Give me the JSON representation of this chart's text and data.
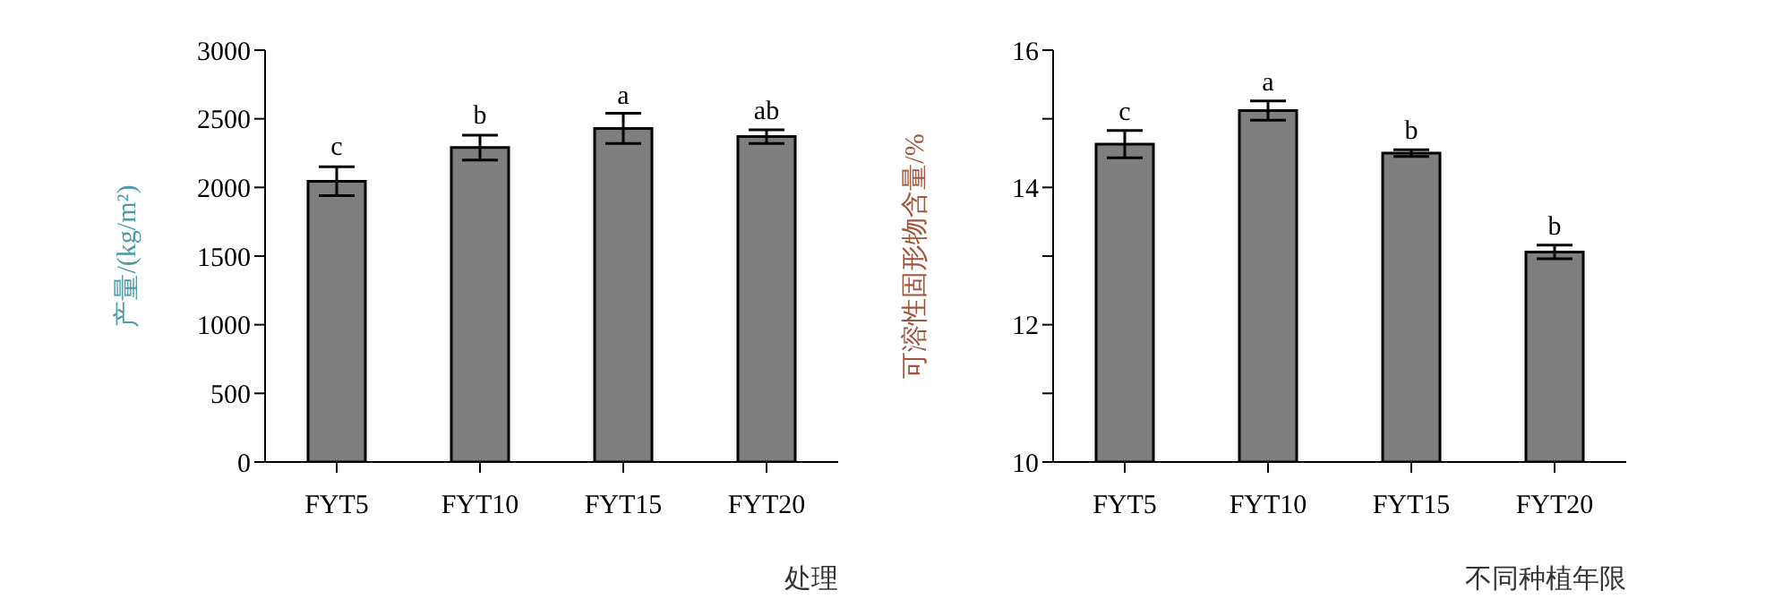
{
  "chart_data": [
    {
      "type": "bar",
      "ylabel": "产量/(kg/m²)",
      "xlabel": "处理",
      "categories": [
        "FYT5",
        "FYT10",
        "FYT15",
        "FYT20"
      ],
      "values": [
        2045,
        2290,
        2430,
        2370
      ],
      "errors": [
        105,
        90,
        110,
        50
      ],
      "color": "#7f7f7f",
      "ylim": [
        0,
        3000
      ],
      "yticks": [
        0,
        500,
        1000,
        1500,
        2000,
        2500,
        3000
      ],
      "grid": false,
      "legend": false,
      "annotations": [
        {
          "text": "c",
          "x": "FYT5",
          "y": 2156
        },
        {
          "text": "b",
          "x": "FYT10",
          "y": 2388
        },
        {
          "text": "a",
          "x": "FYT15",
          "y": 2531
        },
        {
          "text": "ab",
          "x": "FYT20",
          "y": 2420
        }
      ]
    },
    {
      "type": "bar",
      "ylabel": "可溶性固形物含量/%",
      "xlabel": "不同种植年限",
      "categories": [
        "FYT5",
        "FYT10",
        "FYT15",
        "FYT20"
      ],
      "values": [
        14.63,
        15.12,
        14.5,
        13.06
      ],
      "errors": [
        0.2,
        0.14,
        0.05,
        0.1
      ],
      "color": "#7f7f7f",
      "ylim": [
        10,
        16
      ],
      "yticks": [
        10,
        {
          "value": 11,
          "label": null
        },
        12,
        {
          "value": 13,
          "label": null
        },
        14,
        {
          "value": 15,
          "label": null
        },
        16
      ],
      "grid": false,
      "legend": false,
      "annotations": [
        {
          "text": "c",
          "x": "FYT5",
          "y": 14.83
        },
        {
          "text": "a",
          "x": "FYT10",
          "y": 15.26
        },
        {
          "text": "b",
          "x": "FYT15",
          "y": 14.55
        },
        {
          "text": "b",
          "x": "FYT20",
          "y": 13.16
        }
      ]
    }
  ]
}
